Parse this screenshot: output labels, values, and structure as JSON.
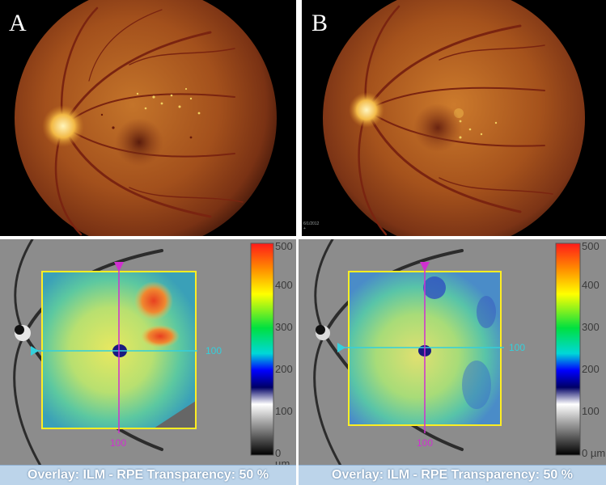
{
  "panels": {
    "a": {
      "letter": "A"
    },
    "b": {
      "letter": "B",
      "stamp_line1": "6/1/2012",
      "stamp_line2": "+"
    }
  },
  "oct": {
    "overlay_text": "Overlay: ILM - RPE  Transparency: 50 %",
    "horizontal_scan_label": "100",
    "vertical_scan_label": "100",
    "scale_ticks": [
      "500",
      "400",
      "300",
      "200",
      "100",
      "0 µm"
    ],
    "colors": {
      "frame": "#ffee22",
      "horizontal_scan": "#33d0dc",
      "vertical_scan": "#d030d0"
    }
  }
}
